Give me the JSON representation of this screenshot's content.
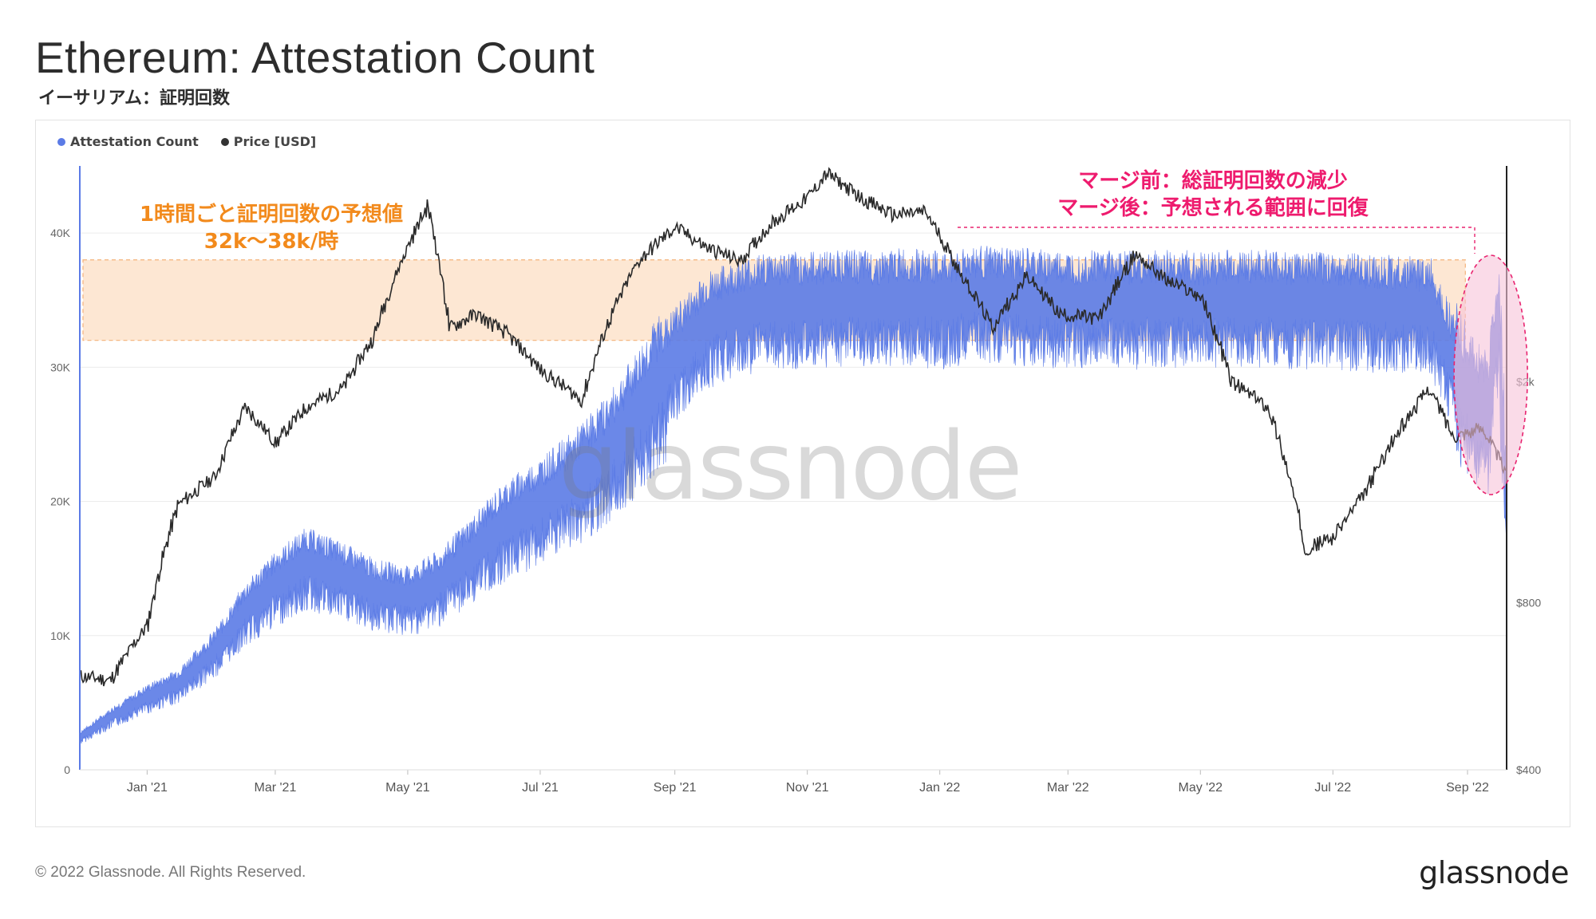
{
  "header": {
    "title": "Ethereum: Attestation Count",
    "subtitle": "イーサリアム：証明回数"
  },
  "legend": {
    "items": [
      {
        "label": "Attestation Count",
        "color": "#5b7be6"
      },
      {
        "label": "Price [USD]",
        "color": "#333333"
      }
    ]
  },
  "annotations": {
    "expected_line1": "1時間ごと証明回数の予想値",
    "expected_line2": "32k〜38k/時",
    "merge_line1": "マージ前：総証明回数の減少",
    "merge_line2": "マージ後：予想される範囲に回復"
  },
  "watermark": "glassnode",
  "footer": {
    "copyright": "© 2022 Glassnode. All Rights Reserved.",
    "brand": "glassnode"
  },
  "colors": {
    "attestation": "#5b7be6",
    "price": "#2a2a2a",
    "band_fill": "#fde7d3",
    "band_border": "#f4b27a",
    "merge_fill": "#f7c3d9",
    "merge_border": "#e8236f"
  },
  "chart_data": {
    "type": "area",
    "x_ticks": [
      "Jan '21",
      "Mar '21",
      "May '21",
      "Jul '21",
      "Sep '21",
      "Nov '21",
      "Jan '22",
      "Mar '22",
      "May '22",
      "Jul '22",
      "Sep '22"
    ],
    "x_tick_dates": [
      "2021-01-01",
      "2021-03-01",
      "2021-05-01",
      "2021-07-01",
      "2021-09-01",
      "2021-11-01",
      "2022-01-01",
      "2022-03-01",
      "2022-05-01",
      "2022-07-01",
      "2022-09-01"
    ],
    "x_range": [
      "2020-12-01",
      "2022-09-19"
    ],
    "y_left": {
      "ticks": [
        0,
        10000,
        20000,
        30000,
        40000
      ],
      "tick_labels": [
        "0",
        "10K",
        "20K",
        "30K",
        "40K"
      ],
      "ylim": [
        0,
        45000
      ]
    },
    "y_right": {
      "scale": "log",
      "ticks": [
        400,
        800,
        2000
      ],
      "tick_labels": [
        "$400",
        "$800",
        "$2k"
      ],
      "ylim": [
        400,
        4900
      ]
    },
    "expected_band": {
      "low": 32000,
      "high": 38000,
      "x_start": "2020-12-01",
      "x_end": "2022-08-31"
    },
    "merge_window": {
      "x_start": "2022-08-31",
      "x_end": "2022-09-19"
    },
    "series": [
      {
        "name": "Attestation Count",
        "axis": "left",
        "points": [
          [
            "2020-12-01",
            2500
          ],
          [
            "2020-12-15",
            4000
          ],
          [
            "2021-01-01",
            5500
          ],
          [
            "2021-01-15",
            6500
          ],
          [
            "2021-02-01",
            9000
          ],
          [
            "2021-02-15",
            12000
          ],
          [
            "2021-03-01",
            14000
          ],
          [
            "2021-03-15",
            15500
          ],
          [
            "2021-04-01",
            14500
          ],
          [
            "2021-04-15",
            13500
          ],
          [
            "2021-05-01",
            13000
          ],
          [
            "2021-05-15",
            14000
          ],
          [
            "2021-06-01",
            16500
          ],
          [
            "2021-06-15",
            18500
          ],
          [
            "2021-07-01",
            20000
          ],
          [
            "2021-07-15",
            21500
          ],
          [
            "2021-08-01",
            24000
          ],
          [
            "2021-08-15",
            27000
          ],
          [
            "2021-09-01",
            31000
          ],
          [
            "2021-09-15",
            33500
          ],
          [
            "2021-10-01",
            34500
          ],
          [
            "2021-10-15",
            35000
          ],
          [
            "2021-11-01",
            35000
          ],
          [
            "2021-11-15",
            35200
          ],
          [
            "2021-12-01",
            35000
          ],
          [
            "2021-12-15",
            35300
          ],
          [
            "2022-01-01",
            35000
          ],
          [
            "2022-01-15",
            35500
          ],
          [
            "2022-02-01",
            35300
          ],
          [
            "2022-02-15",
            35200
          ],
          [
            "2022-03-01",
            35000
          ],
          [
            "2022-03-15",
            35300
          ],
          [
            "2022-04-01",
            35000
          ],
          [
            "2022-04-15",
            35200
          ],
          [
            "2022-05-01",
            35000
          ],
          [
            "2022-05-15",
            35200
          ],
          [
            "2022-06-01",
            35100
          ],
          [
            "2022-06-15",
            35000
          ],
          [
            "2022-07-01",
            35000
          ],
          [
            "2022-07-15",
            34800
          ],
          [
            "2022-08-01",
            34700
          ],
          [
            "2022-08-15",
            34500
          ],
          [
            "2022-09-01",
            28000
          ],
          [
            "2022-09-10",
            27000
          ],
          [
            "2022-09-15",
            34000
          ],
          [
            "2022-09-19",
            17000
          ]
        ]
      },
      {
        "name": "Price [USD]",
        "axis": "right",
        "points": [
          [
            "2020-12-01",
            590
          ],
          [
            "2020-12-15",
            580
          ],
          [
            "2021-01-01",
            730
          ],
          [
            "2021-01-15",
            1200
          ],
          [
            "2021-02-01",
            1350
          ],
          [
            "2021-02-15",
            1800
          ],
          [
            "2021-03-01",
            1550
          ],
          [
            "2021-03-15",
            1800
          ],
          [
            "2021-04-01",
            1950
          ],
          [
            "2021-04-15",
            2400
          ],
          [
            "2021-05-10",
            4150
          ],
          [
            "2021-05-20",
            2500
          ],
          [
            "2021-06-01",
            2650
          ],
          [
            "2021-06-15",
            2450
          ],
          [
            "2021-07-01",
            2100
          ],
          [
            "2021-07-20",
            1850
          ],
          [
            "2021-08-01",
            2550
          ],
          [
            "2021-08-15",
            3300
          ],
          [
            "2021-09-01",
            3800
          ],
          [
            "2021-09-15",
            3500
          ],
          [
            "2021-10-01",
            3300
          ],
          [
            "2021-10-15",
            3850
          ],
          [
            "2021-11-01",
            4300
          ],
          [
            "2021-11-10",
            4750
          ],
          [
            "2021-11-25",
            4300
          ],
          [
            "2021-12-10",
            4000
          ],
          [
            "2021-12-25",
            4050
          ],
          [
            "2022-01-10",
            3150
          ],
          [
            "2022-01-25",
            2500
          ],
          [
            "2022-02-10",
            3100
          ],
          [
            "2022-02-25",
            2650
          ],
          [
            "2022-03-15",
            2600
          ],
          [
            "2022-04-01",
            3400
          ],
          [
            "2022-04-15",
            3050
          ],
          [
            "2022-05-01",
            2850
          ],
          [
            "2022-05-15",
            2000
          ],
          [
            "2022-06-01",
            1800
          ],
          [
            "2022-06-18",
            1000
          ],
          [
            "2022-07-01",
            1050
          ],
          [
            "2022-07-15",
            1250
          ],
          [
            "2022-08-01",
            1650
          ],
          [
            "2022-08-14",
            1950
          ],
          [
            "2022-08-25",
            1600
          ],
          [
            "2022-09-08",
            1650
          ],
          [
            "2022-09-19",
            1350
          ]
        ]
      }
    ]
  }
}
